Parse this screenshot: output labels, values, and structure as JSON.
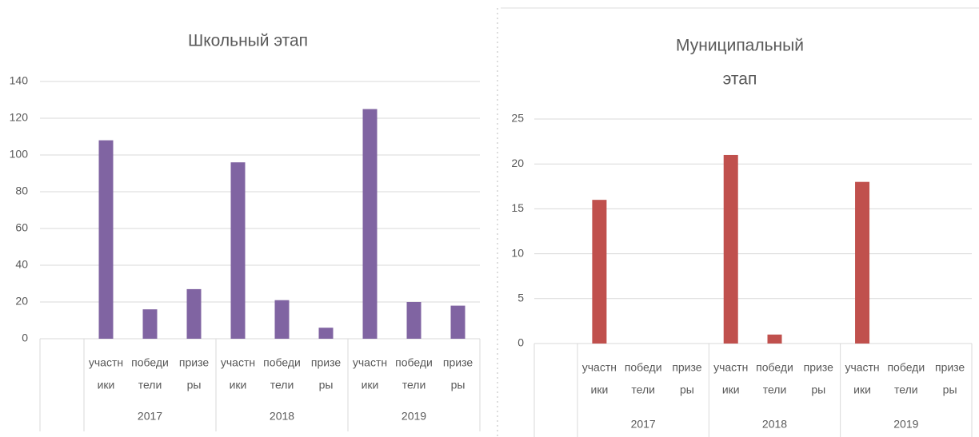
{
  "chart_data": [
    {
      "type": "bar",
      "title": [
        "Школьный этап"
      ],
      "categories": [
        [
          "участн",
          "ики"
        ],
        [
          "победи",
          "тели"
        ],
        [
          "призе",
          "ры"
        ],
        [
          "участн",
          "ики"
        ],
        [
          "победи",
          "тели"
        ],
        [
          "призе",
          "ры"
        ],
        [
          "участн",
          "ики"
        ],
        [
          "победи",
          "тели"
        ],
        [
          "призе",
          "ры"
        ]
      ],
      "groups": [
        "2017",
        "2018",
        "2019"
      ],
      "values": [
        108,
        16,
        27,
        96,
        21,
        6,
        125,
        20,
        18
      ],
      "color": "#8064a2",
      "ylim": [
        0,
        140
      ],
      "yticks": [
        0,
        20,
        40,
        60,
        80,
        100,
        120,
        140
      ],
      "grid": true
    },
    {
      "type": "bar",
      "title": [
        "Муниципальный",
        "этап"
      ],
      "categories": [
        [
          "участн",
          "ики"
        ],
        [
          "победи",
          "тели"
        ],
        [
          "призе",
          "ры"
        ],
        [
          "участн",
          "ики"
        ],
        [
          "победи",
          "тели"
        ],
        [
          "призе",
          "ры"
        ],
        [
          "участн",
          "ики"
        ],
        [
          "победи",
          "тели"
        ],
        [
          "призе",
          "ры"
        ]
      ],
      "groups": [
        "2017",
        "2018",
        "2019"
      ],
      "values": [
        16,
        0,
        0,
        21,
        1,
        0,
        18,
        0,
        0
      ],
      "color": "#c0504d",
      "ylim": [
        0,
        25
      ],
      "yticks": [
        0,
        5,
        10,
        15,
        20,
        25
      ],
      "grid": true
    }
  ]
}
